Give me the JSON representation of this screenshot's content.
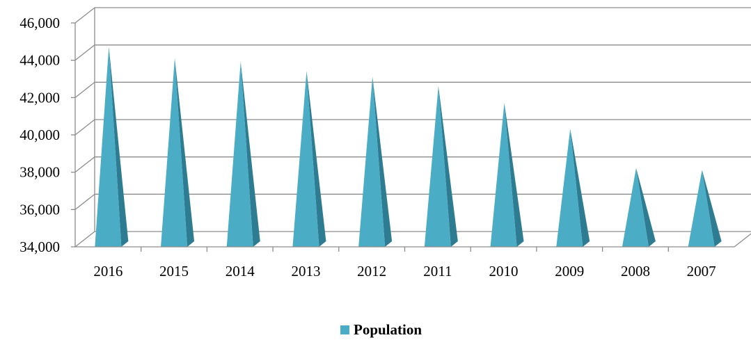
{
  "chart_data": {
    "type": "bar",
    "style": "3d-pyramid",
    "categories": [
      "2016",
      "2015",
      "2014",
      "2013",
      "2012",
      "2011",
      "2010",
      "2009",
      "2008",
      "2007"
    ],
    "series": [
      {
        "name": "Population",
        "values": [
          44500,
          43900,
          43700,
          43200,
          42900,
          42400,
          41500,
          40100,
          38000,
          37900
        ]
      }
    ],
    "ylim": [
      34000,
      46000
    ],
    "yticks": [
      "34,000",
      "36,000",
      "38,000",
      "40,000",
      "42,000",
      "44,000",
      "46,000"
    ],
    "grid": true,
    "legend": "bottom-center",
    "colors": {
      "front_face": "#4BACC6",
      "side_face": "#2E7C91",
      "legend_swatch": "#4BACC6",
      "grid": "#8c8c8c"
    }
  }
}
